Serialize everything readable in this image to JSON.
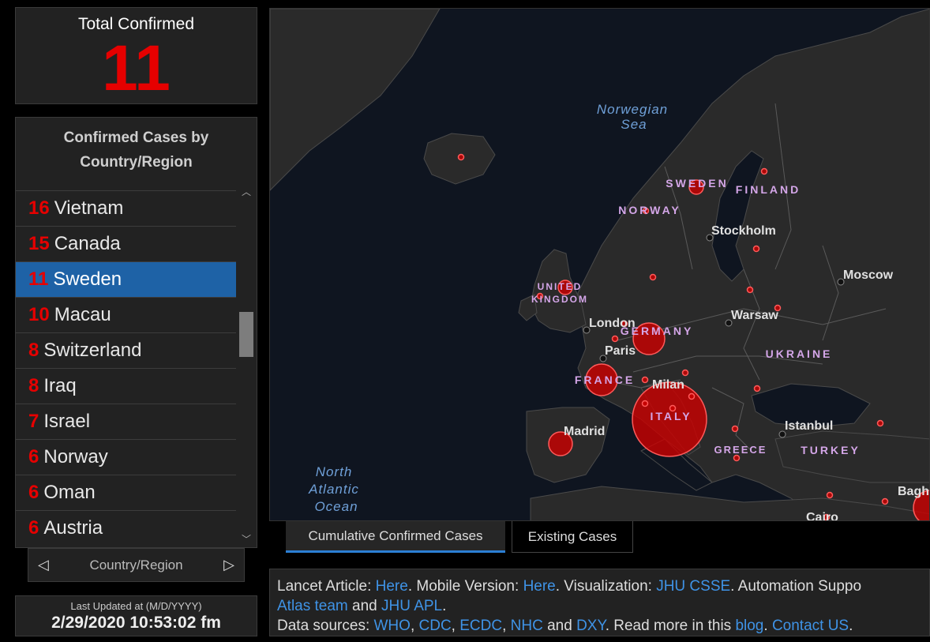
{
  "total": {
    "label": "Total Confirmed",
    "value": "11"
  },
  "list": {
    "header_line1": "Confirmed Cases by",
    "header_line2": "Country/Region",
    "rows": [
      {
        "n": "16",
        "c": "Vietnam"
      },
      {
        "n": "15",
        "c": "Canada"
      },
      {
        "n": "11",
        "c": "Sweden",
        "selected": true
      },
      {
        "n": "10",
        "c": "Macau"
      },
      {
        "n": "8",
        "c": "Switzerland"
      },
      {
        "n": "8",
        "c": "Iraq"
      },
      {
        "n": "7",
        "c": "Israel"
      },
      {
        "n": "6",
        "c": "Norway"
      },
      {
        "n": "6",
        "c": "Oman"
      },
      {
        "n": "6",
        "c": "Austria"
      }
    ]
  },
  "pager": {
    "label": "Country/Region",
    "prev": "◁",
    "next": "▷"
  },
  "updated": {
    "label": "Last Updated at (M/D/YYYY)",
    "value": "2/29/2020 10:53:02 fm"
  },
  "map": {
    "oceans": {
      "norwegian1": "Norwegian",
      "norwegian2": "Sea",
      "atlantic1": "North",
      "atlantic2": "Atlantic",
      "atlantic3": "Ocean"
    },
    "countries": {
      "sweden": "SWEDEN",
      "finland": "FINLAND",
      "norway": "NORWAY",
      "uk1": "UNITED",
      "uk2": "KINGDOM",
      "germany": "GERMANY",
      "ukraine": "UKRAINE",
      "france": "FRANCE",
      "italy": "ITALY",
      "greece": "GREECE",
      "turkey": "TURKEY"
    },
    "cities": {
      "stockholm": "Stockholm",
      "moscow": "Moscow",
      "london": "London",
      "warsaw": "Warsaw",
      "paris": "Paris",
      "milan": "Milan",
      "istanbul": "Istanbul",
      "madrid": "Madrid",
      "baghdad": "Baghd",
      "cairo": "Cairo"
    },
    "marker_color": "#d40000"
  },
  "tabs": {
    "tab1": "Cumulative Confirmed Cases",
    "tab2": "Existing Cases"
  },
  "info": {
    "t1": "Lancet Article: ",
    "l1": "Here",
    "t2": ". Mobile Version: ",
    "l2": "Here",
    "t3": ". Visualization: ",
    "l3": "JHU CSSE",
    "t4": ". Automation Suppo",
    "l4": "Atlas team",
    "t5": " and ",
    "l5": "JHU APL",
    "t6": ".",
    "t7": "Data sources: ",
    "l6": "WHO",
    "c1": ", ",
    "l7": "CDC",
    "c2": ", ",
    "l8": "ECDC",
    "c3": ", ",
    "l9": "NHC",
    "t8": " and ",
    "l10": "DXY",
    "t9": ". Read more in this ",
    "l11": "blog",
    "t10": ". ",
    "l12": "Contact US",
    "t11": "."
  }
}
